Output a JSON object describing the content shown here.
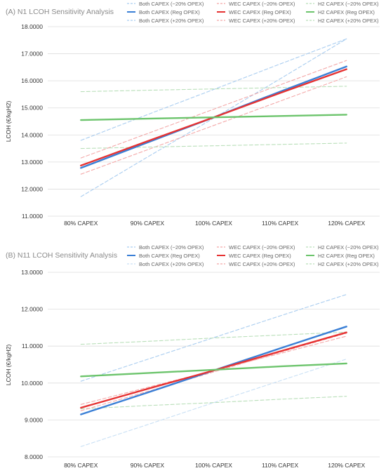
{
  "chart_data": [
    {
      "type": "line",
      "title": "(A) N1 LCOH Sensitivity Analysis",
      "ylabel": "LCOH (€/kgH2)",
      "categories": [
        "80% CAPEX",
        "90% CAPEX",
        "100% CAPEX",
        "110% CAPEX",
        "120% CAPEX"
      ],
      "ylim": [
        11,
        18
      ],
      "yticks": [
        "11.0000",
        "12.0000",
        "13.0000",
        "14.0000",
        "15.0000",
        "16.0000",
        "17.0000",
        "18.0000"
      ],
      "grid": true,
      "legend_position": "top",
      "series": [
        {
          "name": "Both CAPEX (−20% OPEX)",
          "color": "#a9cdf0",
          "dashed": true,
          "values": [
            11.72,
            13.18,
            14.62,
            16.07,
            17.55
          ]
        },
        {
          "name": "WEC CAPEX (−20% OPEX)",
          "color": "#f4a8a8",
          "dashed": true,
          "values": [
            12.55,
            13.45,
            14.35,
            15.25,
            16.15
          ]
        },
        {
          "name": "H2 CAPEX (−20% OPEX)",
          "color": "#b9dfb9",
          "dashed": true,
          "values": [
            13.5,
            13.55,
            13.6,
            13.65,
            13.7
          ]
        },
        {
          "name": "Both CAPEX (Reg OPEX)",
          "color": "#3a7fd6",
          "dashed": false,
          "values": [
            12.78,
            13.72,
            14.65,
            15.6,
            16.53
          ]
        },
        {
          "name": "WEC CAPEX (Reg OPEX)",
          "color": "#e63232",
          "dashed": false,
          "values": [
            12.87,
            13.77,
            14.65,
            15.55,
            16.43
          ]
        },
        {
          "name": "H2 CAPEX (Reg OPEX)",
          "color": "#6cc46c",
          "dashed": false,
          "values": [
            14.55,
            14.6,
            14.65,
            14.7,
            14.75
          ]
        },
        {
          "name": "Both CAPEX (+20% OPEX)",
          "color": "#a9cdf0",
          "dashed": true,
          "values": [
            13.8,
            14.75,
            15.68,
            16.62,
            17.55
          ]
        },
        {
          "name": "WEC CAPEX (+20% OPEX)",
          "color": "#f4a8a8",
          "dashed": true,
          "values": [
            13.15,
            14.05,
            14.95,
            15.85,
            16.75
          ]
        },
        {
          "name": "H2 CAPEX (+20% OPEX)",
          "color": "#b9dfb9",
          "dashed": true,
          "values": [
            15.6,
            15.65,
            15.7,
            15.75,
            15.8
          ]
        }
      ]
    },
    {
      "type": "line",
      "title": "(B) N11 LCOH Sensitivity Analysis",
      "ylabel": "LCOH (€/kgH2)",
      "categories": [
        "80% CAPEX",
        "90% CAPEX",
        "100% CAPEX",
        "110% CAPEX",
        "120% CAPEX"
      ],
      "ylim": [
        8,
        13
      ],
      "yticks": [
        "8.0000",
        "9.0000",
        "10.0000",
        "11.0000",
        "12.0000",
        "13.0000"
      ],
      "grid": true,
      "legend_position": "top",
      "series": [
        {
          "name": "Both CAPEX (−20% OPEX)",
          "color": "#a9cdf0",
          "dashed": true,
          "values": [
            10.05,
            10.64,
            11.23,
            11.82,
            12.4
          ]
        },
        {
          "name": "WEC CAPEX (−20% OPEX)",
          "color": "#f4a8a8",
          "dashed": true,
          "values": [
            9.42,
            9.88,
            10.34,
            10.8,
            11.27
          ]
        },
        {
          "name": "H2 CAPEX (−20% OPEX)",
          "color": "#b9dfb9",
          "dashed": true,
          "values": [
            9.3,
            9.39,
            9.47,
            9.56,
            9.64
          ]
        },
        {
          "name": "Both CAPEX (Reg OPEX)",
          "color": "#3a7fd6",
          "dashed": false,
          "values": [
            9.15,
            9.74,
            10.34,
            10.94,
            11.53
          ]
        },
        {
          "name": "WEC CAPEX (Reg OPEX)",
          "color": "#e63232",
          "dashed": false,
          "values": [
            9.33,
            9.84,
            10.34,
            10.86,
            11.37
          ]
        },
        {
          "name": "H2 CAPEX (Reg OPEX)",
          "color": "#6cc46c",
          "dashed": false,
          "values": [
            10.18,
            10.27,
            10.36,
            10.45,
            10.53
          ]
        },
        {
          "name": "Both CAPEX (+20% OPEX)",
          "color": "#c9e0f5",
          "dashed": true,
          "values": [
            8.28,
            8.87,
            9.47,
            10.06,
            10.65
          ]
        },
        {
          "name": "WEC CAPEX (+20% OPEX)",
          "color": "#f4a8a8",
          "dashed": true,
          "values": [
            9.25,
            9.77,
            10.3,
            10.83,
            11.35
          ]
        },
        {
          "name": "H2 CAPEX (+20% OPEX)",
          "color": "#b9dfb9",
          "dashed": true,
          "values": [
            11.05,
            11.13,
            11.22,
            11.3,
            11.38
          ]
        }
      ]
    }
  ]
}
